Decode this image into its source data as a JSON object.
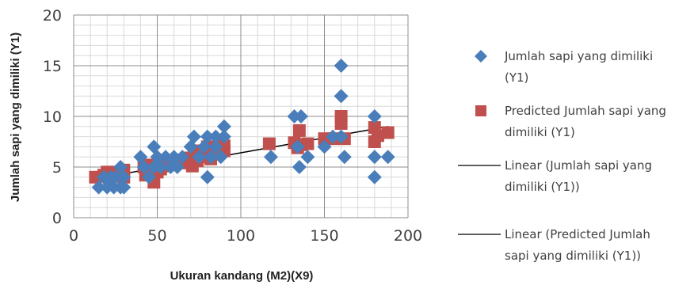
{
  "chart_data": {
    "type": "scatter",
    "xlabel": "Ukuran kandang (M2)(X9)",
    "ylabel": "Jumlah sapi yang dimiliki (Y1)",
    "xlim": [
      0,
      200
    ],
    "ylim": [
      0,
      20
    ],
    "xticks": [
      "0",
      "50",
      "100",
      "150",
      "200"
    ],
    "yticks": [
      "0",
      "5",
      "10",
      "15",
      "20"
    ],
    "minor_grid_x_step": 10,
    "minor_grid_y_step": 1,
    "grid": true,
    "legend_position": "right",
    "series": [
      {
        "name": "Jumlah sapi yang dimiliki (Y1)",
        "kind": "scatter",
        "marker": "diamond",
        "color": "#4a7ebb",
        "points": [
          [
            15,
            3
          ],
          [
            18,
            4
          ],
          [
            20,
            3
          ],
          [
            22,
            4
          ],
          [
            24,
            3
          ],
          [
            25,
            4
          ],
          [
            28,
            3
          ],
          [
            28,
            5
          ],
          [
            30,
            4
          ],
          [
            30,
            3
          ],
          [
            40,
            6
          ],
          [
            42,
            5
          ],
          [
            45,
            4
          ],
          [
            48,
            5
          ],
          [
            48,
            7
          ],
          [
            50,
            6
          ],
          [
            52,
            5
          ],
          [
            55,
            6
          ],
          [
            58,
            5
          ],
          [
            60,
            6
          ],
          [
            62,
            5
          ],
          [
            65,
            6
          ],
          [
            70,
            7
          ],
          [
            72,
            8
          ],
          [
            75,
            6
          ],
          [
            78,
            7
          ],
          [
            80,
            4
          ],
          [
            80,
            8
          ],
          [
            82,
            6
          ],
          [
            85,
            7
          ],
          [
            85,
            8
          ],
          [
            88,
            6
          ],
          [
            90,
            9
          ],
          [
            90,
            8
          ],
          [
            118,
            6
          ],
          [
            132,
            10
          ],
          [
            134,
            7
          ],
          [
            135,
            5
          ],
          [
            136,
            10
          ],
          [
            140,
            6
          ],
          [
            150,
            7
          ],
          [
            155,
            8
          ],
          [
            160,
            15
          ],
          [
            160,
            12
          ],
          [
            160,
            8
          ],
          [
            162,
            6
          ],
          [
            180,
            10
          ],
          [
            180,
            6
          ],
          [
            180,
            4
          ],
          [
            188,
            6
          ]
        ]
      },
      {
        "name": "Predicted Jumlah sapi yang dimiliki (Y1)",
        "kind": "scatter",
        "marker": "square",
        "color": "#c0504d",
        "points": [
          [
            13,
            4
          ],
          [
            18,
            4.2
          ],
          [
            20,
            4.5
          ],
          [
            22,
            4.5
          ],
          [
            24,
            4.1
          ],
          [
            26,
            4.3
          ],
          [
            28,
            4.5
          ],
          [
            30,
            4.0
          ],
          [
            30,
            4.7
          ],
          [
            42,
            5.0
          ],
          [
            43,
            4.2
          ],
          [
            45,
            5.2
          ],
          [
            48,
            3.5
          ],
          [
            48,
            5.2
          ],
          [
            50,
            4.5
          ],
          [
            52,
            4.8
          ],
          [
            55,
            5.1
          ],
          [
            58,
            5.3
          ],
          [
            60,
            5.6
          ],
          [
            62,
            5.5
          ],
          [
            64,
            5.4
          ],
          [
            66,
            5.7
          ],
          [
            70,
            5.9
          ],
          [
            71,
            5.1
          ],
          [
            72,
            6.6
          ],
          [
            74,
            5.6
          ],
          [
            76,
            6.3
          ],
          [
            78,
            6.4
          ],
          [
            80,
            7.0
          ],
          [
            80,
            6.0
          ],
          [
            81,
            6.8
          ],
          [
            82,
            5.8
          ],
          [
            84,
            6.8
          ],
          [
            86,
            6.5
          ],
          [
            88,
            7.3
          ],
          [
            90,
            6.6
          ],
          [
            90,
            7.1
          ],
          [
            117,
            7.3
          ],
          [
            132,
            7.4
          ],
          [
            134,
            6.9
          ],
          [
            135,
            8.6
          ],
          [
            136,
            7.2
          ],
          [
            140,
            7.3
          ],
          [
            150,
            7.8
          ],
          [
            155,
            7.8
          ],
          [
            160,
            10.0
          ],
          [
            160,
            9.3
          ],
          [
            162,
            7.8
          ],
          [
            180,
            8.9
          ],
          [
            180,
            7.5
          ],
          [
            182,
            8.1
          ],
          [
            188,
            8.4
          ]
        ]
      },
      {
        "name": "Linear (Jumlah sapi yang dimiliki (Y1))",
        "kind": "line",
        "color": "#000000",
        "x": [
          15,
          188
        ],
        "y": [
          3.9,
          9.0
        ]
      },
      {
        "name": "Linear (Predicted Jumlah sapi yang dimiliki (Y1))",
        "kind": "line",
        "color": "#000000",
        "x": [
          15,
          188
        ],
        "y": [
          3.9,
          9.0
        ]
      }
    ],
    "legend": [
      {
        "label_lines": [
          "Jumlah sapi yang dimiliki",
          "(Y1)"
        ],
        "symbol": "diamond",
        "color": "#4a7ebb"
      },
      {
        "label_lines": [
          "Predicted Jumlah sapi yang",
          "dimiliki (Y1)"
        ],
        "symbol": "square",
        "color": "#c0504d"
      },
      {
        "label_lines": [
          "Linear (Jumlah sapi yang",
          "dimiliki (Y1))"
        ],
        "symbol": "line",
        "color": "#000000"
      },
      {
        "label_lines": [
          "Linear (Predicted Jumlah",
          "sapi yang dimiliki (Y1))"
        ],
        "symbol": "line",
        "color": "#000000"
      }
    ]
  }
}
